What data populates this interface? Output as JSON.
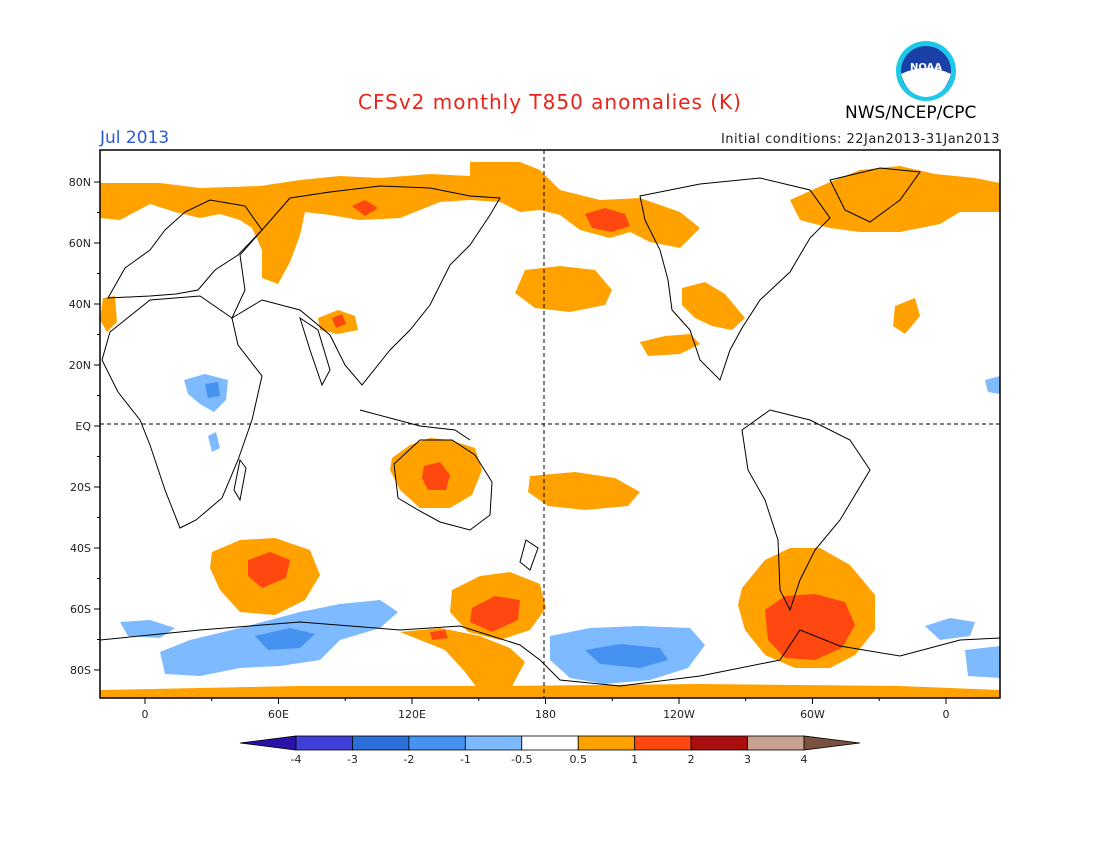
{
  "header": {
    "title": "CFSv2 monthly T850 anomalies (K)",
    "month": "Jul 2013",
    "initial_conditions": "Initial conditions: 22Jan2013-31Jan2013",
    "organization": "NWS/NCEP/CPC",
    "logo_text": "NOAA"
  },
  "map": {
    "lat_labels": [
      "80N",
      "60N",
      "40N",
      "20N",
      "EQ",
      "20S",
      "40S",
      "60S",
      "80S"
    ],
    "lon_labels": [
      "0",
      "60E",
      "120E",
      "180",
      "120W",
      "60W",
      "0"
    ],
    "colors": {
      "anomaly_pos_1": "#ffa200",
      "anomaly_pos_2": "#ff4810",
      "anomaly_neg_1": "#7dbaff",
      "anomaly_neg_2": "#4592f0"
    }
  },
  "colorbar": {
    "labels": [
      "-4",
      "-3",
      "-2",
      "-1",
      "-0.5",
      "0.5",
      "1",
      "2",
      "3",
      "4"
    ],
    "colors": [
      "#2a12a8",
      "#4040d8",
      "#2c6fd9",
      "#4592f0",
      "#7dbaff",
      "#ffffff",
      "#ffa200",
      "#ff4810",
      "#a80e0e",
      "#c8a090",
      "#7a5040"
    ]
  }
}
